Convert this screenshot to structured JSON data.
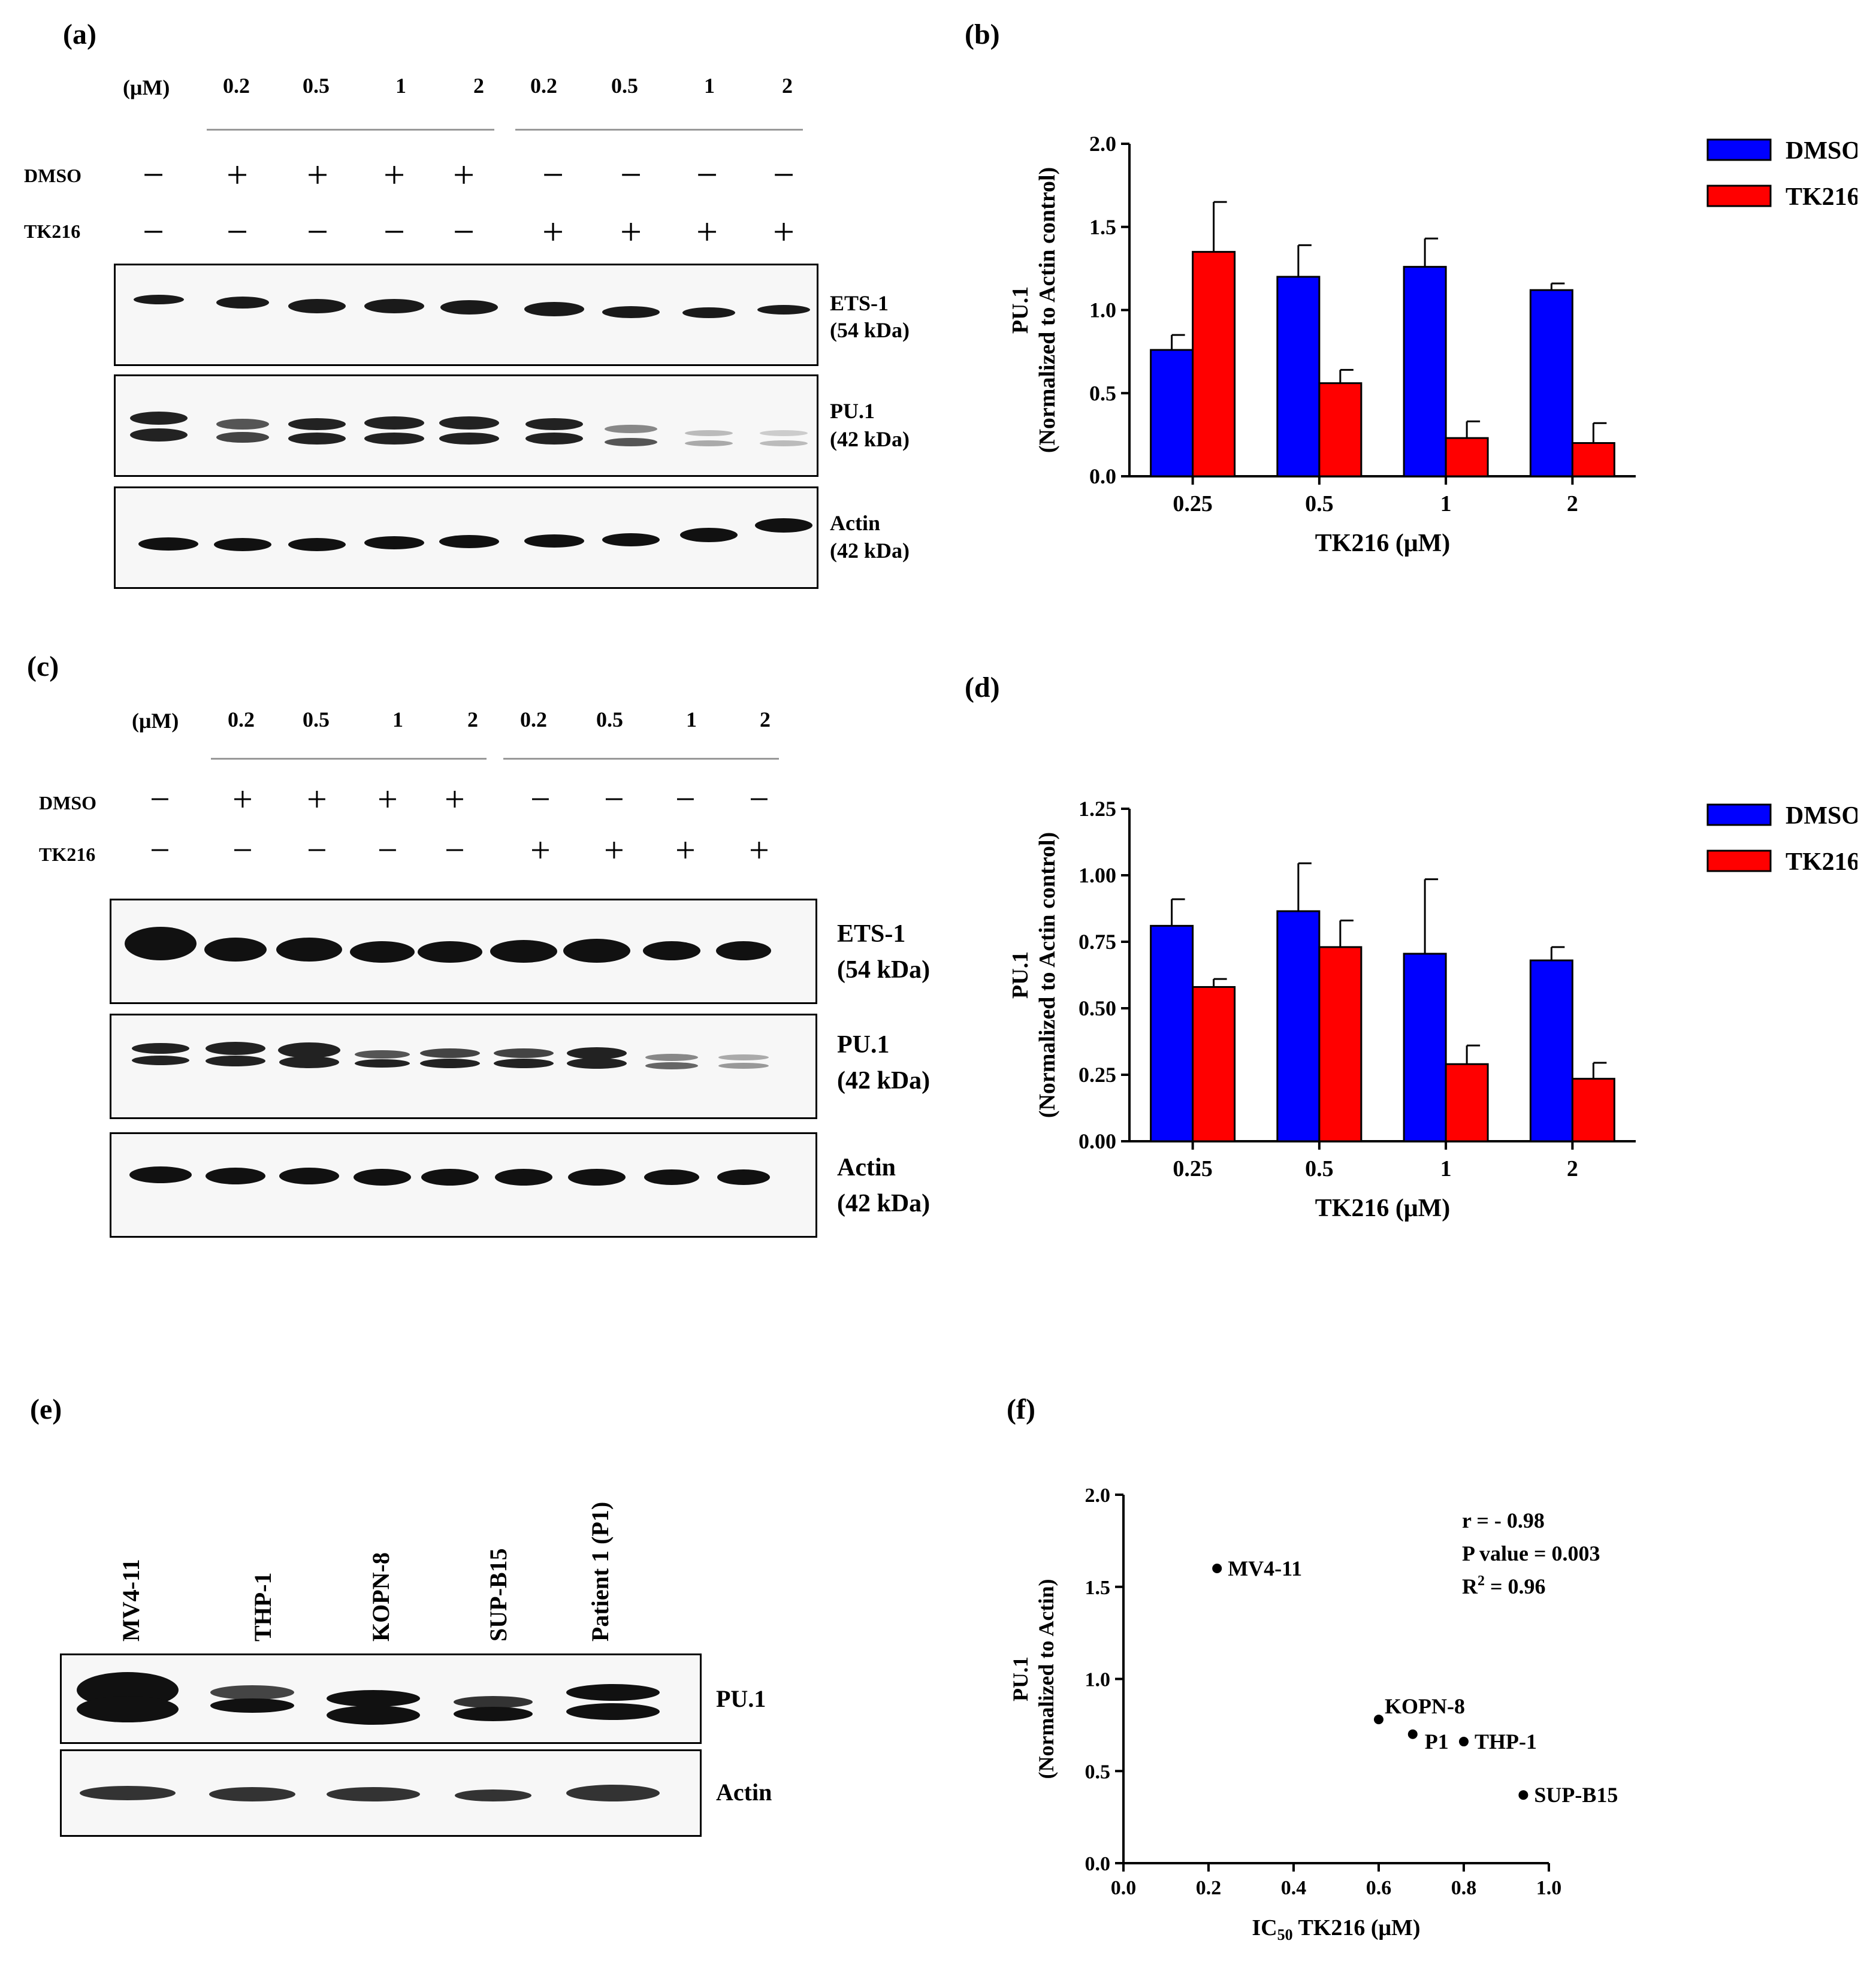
{
  "panels": {
    "a": "(a)",
    "b": "(b)",
    "c": "(c)",
    "d": "(d)",
    "e": "(e)",
    "f": "(f)"
  },
  "blot_a": {
    "unit": "(μM)",
    "concs": [
      "0.2",
      "0.5",
      "1",
      "2",
      "0.2",
      "0.5",
      "1",
      "2"
    ],
    "row_dmso_label": "DMSO",
    "row_tk_label": "TK216",
    "dmso_signs": [
      "−",
      "+",
      "+",
      "+",
      "+",
      "−",
      "−",
      "−",
      "−"
    ],
    "tk_signs": [
      "−",
      "−",
      "−",
      "−",
      "−",
      "+",
      "+",
      "+",
      "+"
    ],
    "bands": [
      {
        "name": "ETS-1",
        "size": "(54 kDa)"
      },
      {
        "name": "PU.1",
        "size": "(42 kDa)"
      },
      {
        "name": "Actin",
        "size": "(42 kDa)"
      }
    ]
  },
  "blot_c": {
    "unit": "(μM)",
    "concs": [
      "0.2",
      "0.5",
      "1",
      "2",
      "0.2",
      "0.5",
      "1",
      "2"
    ],
    "row_dmso_label": "DMSO",
    "row_tk_label": "TK216",
    "dmso_signs": [
      "−",
      "+",
      "+",
      "+",
      "+",
      "−",
      "−",
      "−",
      "−"
    ],
    "tk_signs": [
      "−",
      "−",
      "−",
      "−",
      "−",
      "+",
      "+",
      "+",
      "+"
    ],
    "bands": [
      {
        "name": "ETS-1",
        "size": "(54 kDa)"
      },
      {
        "name": "PU.1",
        "size": "(42 kDa)"
      },
      {
        "name": "Actin",
        "size": "(42 kDa)"
      }
    ]
  },
  "blot_e": {
    "lanes": [
      "MV4-11",
      "THP-1",
      "KOPN-8",
      "SUP-B15",
      "Patient 1 (P1)"
    ],
    "bands": [
      "PU.1",
      "Actin"
    ]
  },
  "chart_data": [
    {
      "id": "b",
      "type": "bar",
      "categories": [
        "0.25",
        "0.5",
        "1",
        "2"
      ],
      "series": [
        {
          "name": "DMSO",
          "color": "#0000ff",
          "values": [
            0.76,
            1.2,
            1.26,
            1.12
          ],
          "errors": [
            0.09,
            0.19,
            0.17,
            0.04
          ]
        },
        {
          "name": "TK216",
          "color": "#ff0000",
          "values": [
            1.35,
            0.56,
            0.23,
            0.2
          ],
          "errors": [
            0.3,
            0.08,
            0.1,
            0.12
          ]
        }
      ],
      "xlabel": "TK216 (μM)",
      "ylabel": "PU.1",
      "ylabel2": "(Normalized to Actin control)",
      "ylim": [
        0,
        2.0
      ],
      "yticks": [
        "0.0",
        "0.5",
        "1.0",
        "1.5",
        "2.0"
      ],
      "legend_position": "top-right"
    },
    {
      "id": "d",
      "type": "bar",
      "categories": [
        "0.25",
        "0.5",
        "1",
        "2"
      ],
      "series": [
        {
          "name": "DMSO",
          "color": "#0000ff",
          "values": [
            0.81,
            0.865,
            0.705,
            0.68
          ],
          "errors": [
            0.1,
            0.18,
            0.28,
            0.05
          ]
        },
        {
          "name": "TK216",
          "color": "#ff0000",
          "values": [
            0.58,
            0.73,
            0.29,
            0.235
          ],
          "errors": [
            0.03,
            0.1,
            0.07,
            0.06
          ]
        }
      ],
      "xlabel": "TK216 (μM)",
      "ylabel": "PU.1",
      "ylabel2": "(Normalized to Actin control)",
      "ylim": [
        0,
        1.25
      ],
      "yticks": [
        "0.00",
        "0.25",
        "0.50",
        "0.75",
        "1.00",
        "1.25"
      ],
      "legend_position": "top-right"
    },
    {
      "id": "f",
      "type": "scatter",
      "points": [
        {
          "label": "MV4-11",
          "x": 0.22,
          "y": 1.6
        },
        {
          "label": "KOPN-8",
          "x": 0.6,
          "y": 0.78
        },
        {
          "label": "P1",
          "x": 0.68,
          "y": 0.7
        },
        {
          "label": "THP-1",
          "x": 0.8,
          "y": 0.66
        },
        {
          "label": "SUP-B15",
          "x": 0.94,
          "y": 0.37
        }
      ],
      "xlabel_main": "IC",
      "xlabel_sub": "50",
      "xlabel_rest": " TK216 (μM)",
      "ylabel": "PU.1",
      "ylabel2": "(Normalized to Actin)",
      "xlim": [
        0,
        1.0
      ],
      "ylim": [
        0,
        2.0
      ],
      "xticks": [
        "0.0",
        "0.2",
        "0.4",
        "0.6",
        "0.8",
        "1.0"
      ],
      "yticks": [
        "0.0",
        "0.5",
        "1.0",
        "1.5",
        "2.0"
      ],
      "stats": {
        "r": "r = - 0.98",
        "p": "P value = 0.003",
        "r2_prefix": "R",
        "r2_exp": "2",
        "r2_suffix": " = 0.96"
      }
    }
  ]
}
